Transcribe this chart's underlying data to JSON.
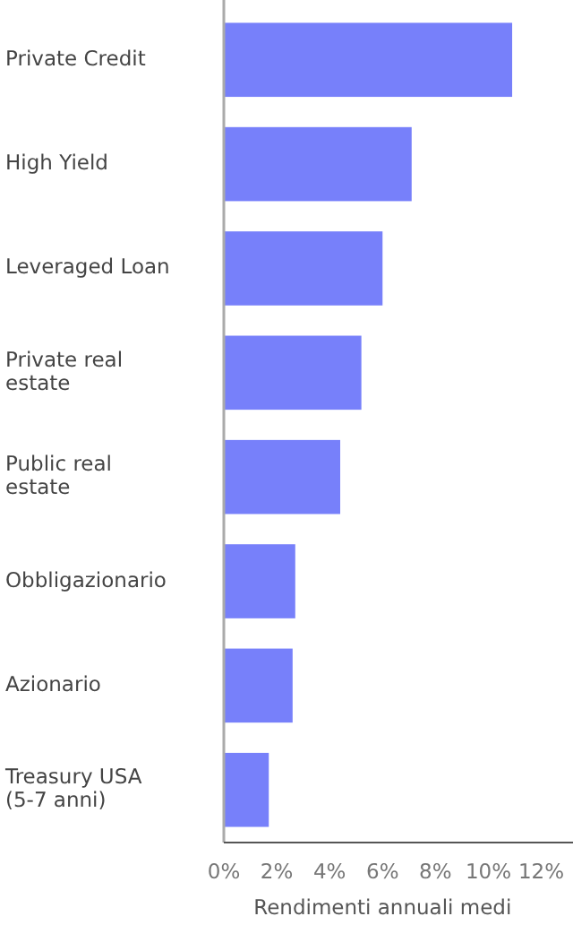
{
  "chart_data": {
    "type": "bar",
    "orientation": "horizontal",
    "xlabel": "Rendimenti annuali medi",
    "categories": [
      "Private Credit",
      "High Yield",
      "Leveraged Loan",
      "Private real estate",
      "Public real estate",
      "Obbligazionario",
      "Azionario",
      "Treasury USA (5-7 anni)"
    ],
    "values": [
      10.9,
      7.1,
      6.0,
      5.2,
      4.4,
      2.7,
      2.6,
      1.7
    ],
    "color": "#7780fa",
    "xlim": [
      0,
      13.2
    ],
    "xticks": [
      {
        "value": 0,
        "label": "0%"
      },
      {
        "value": 2,
        "label": "2%"
      },
      {
        "value": 4,
        "label": "4%"
      },
      {
        "value": 6,
        "label": "6%"
      },
      {
        "value": 8,
        "label": "8%"
      },
      {
        "value": 10,
        "label": "10%"
      },
      {
        "value": 12,
        "label": "12%"
      }
    ],
    "grid": false
  }
}
